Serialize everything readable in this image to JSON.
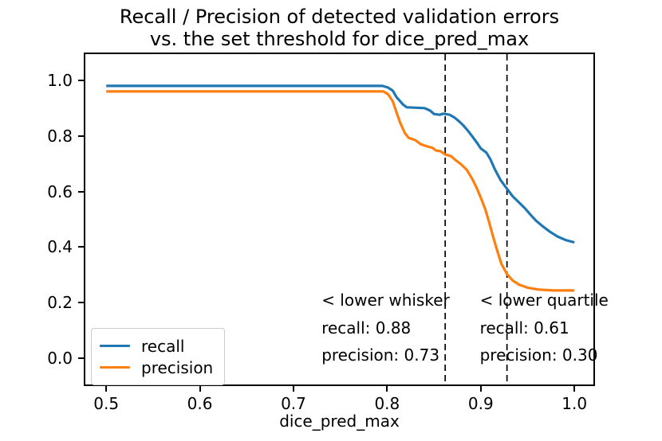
{
  "title": {
    "line1": "Recall / Precision of detected validation errors",
    "line2": "vs. the set threshold for dice_pred_max"
  },
  "chart_data": {
    "type": "line",
    "title": "Recall / Precision of detected validation errors vs. the set threshold for dice_pred_max",
    "xlabel": "dice_pred_max",
    "ylabel": "",
    "xlim": [
      0.476,
      1.022
    ],
    "ylim": [
      -0.1,
      1.1
    ],
    "x_ticks": [
      0.5,
      0.6,
      0.7,
      0.8,
      0.9,
      1.0
    ],
    "y_ticks": [
      0.0,
      0.2,
      0.4,
      0.6,
      0.8,
      1.0
    ],
    "grid": false,
    "frame_color": "#000000",
    "series": [
      {
        "name": "recall",
        "color": "#1f77b4",
        "points": [
          [
            0.5,
            0.98
          ],
          [
            0.795,
            0.98
          ],
          [
            0.801,
            0.974
          ],
          [
            0.806,
            0.963
          ],
          [
            0.81,
            0.94
          ],
          [
            0.817,
            0.913
          ],
          [
            0.821,
            0.903
          ],
          [
            0.84,
            0.9
          ],
          [
            0.846,
            0.891
          ],
          [
            0.85,
            0.879
          ],
          [
            0.856,
            0.876
          ],
          [
            0.86,
            0.88
          ],
          [
            0.867,
            0.876
          ],
          [
            0.872,
            0.866
          ],
          [
            0.877,
            0.852
          ],
          [
            0.881,
            0.839
          ],
          [
            0.886,
            0.82
          ],
          [
            0.891,
            0.798
          ],
          [
            0.896,
            0.775
          ],
          [
            0.9,
            0.755
          ],
          [
            0.906,
            0.74
          ],
          [
            0.91,
            0.718
          ],
          [
            0.915,
            0.68
          ],
          [
            0.921,
            0.642
          ],
          [
            0.928,
            0.61
          ],
          [
            0.934,
            0.583
          ],
          [
            0.941,
            0.56
          ],
          [
            0.947,
            0.54
          ],
          [
            0.953,
            0.517
          ],
          [
            0.959,
            0.495
          ],
          [
            0.966,
            0.475
          ],
          [
            0.974,
            0.455
          ],
          [
            0.982,
            0.438
          ],
          [
            0.991,
            0.425
          ],
          [
            1.0,
            0.417
          ]
        ]
      },
      {
        "name": "precision",
        "color": "#ff7f0e",
        "points": [
          [
            0.5,
            0.96
          ],
          [
            0.796,
            0.96
          ],
          [
            0.801,
            0.95
          ],
          [
            0.806,
            0.925
          ],
          [
            0.81,
            0.885
          ],
          [
            0.814,
            0.847
          ],
          [
            0.819,
            0.81
          ],
          [
            0.823,
            0.793
          ],
          [
            0.83,
            0.785
          ],
          [
            0.836,
            0.77
          ],
          [
            0.843,
            0.762
          ],
          [
            0.848,
            0.758
          ],
          [
            0.852,
            0.748
          ],
          [
            0.857,
            0.745
          ],
          [
            0.862,
            0.733
          ],
          [
            0.868,
            0.728
          ],
          [
            0.873,
            0.713
          ],
          [
            0.879,
            0.698
          ],
          [
            0.885,
            0.678
          ],
          [
            0.891,
            0.645
          ],
          [
            0.896,
            0.61
          ],
          [
            0.9,
            0.578
          ],
          [
            0.905,
            0.535
          ],
          [
            0.909,
            0.489
          ],
          [
            0.913,
            0.44
          ],
          [
            0.917,
            0.394
          ],
          [
            0.922,
            0.34
          ],
          [
            0.928,
            0.303
          ],
          [
            0.934,
            0.28
          ],
          [
            0.941,
            0.265
          ],
          [
            0.95,
            0.254
          ],
          [
            0.962,
            0.247
          ],
          [
            0.978,
            0.244
          ],
          [
            1.0,
            0.244
          ]
        ]
      }
    ],
    "vlines": [
      {
        "x": 0.862,
        "style": "dashed",
        "color": "#000000",
        "label": "lower whisker"
      },
      {
        "x": 0.928,
        "style": "dashed",
        "color": "#000000",
        "label": "lower quartile"
      }
    ],
    "annotations": [
      {
        "x": 0.73,
        "rows": [
          {
            "text": "< lower whisker",
            "y": 0.209
          },
          {
            "text": "recall: 0.88",
            "y": 0.11
          },
          {
            "text": "precision: 0.73",
            "y": 0.012
          }
        ]
      },
      {
        "x": 0.899,
        "rows": [
          {
            "text": "< lower quartile",
            "y": 0.209
          },
          {
            "text": "recall: 0.61",
            "y": 0.11
          },
          {
            "text": "precision: 0.30",
            "y": 0.012
          }
        ]
      }
    ],
    "legend": {
      "position": "lower left",
      "entries": [
        {
          "label": "recall",
          "color": "#1f77b4"
        },
        {
          "label": "precision",
          "color": "#ff7f0e"
        }
      ]
    }
  }
}
